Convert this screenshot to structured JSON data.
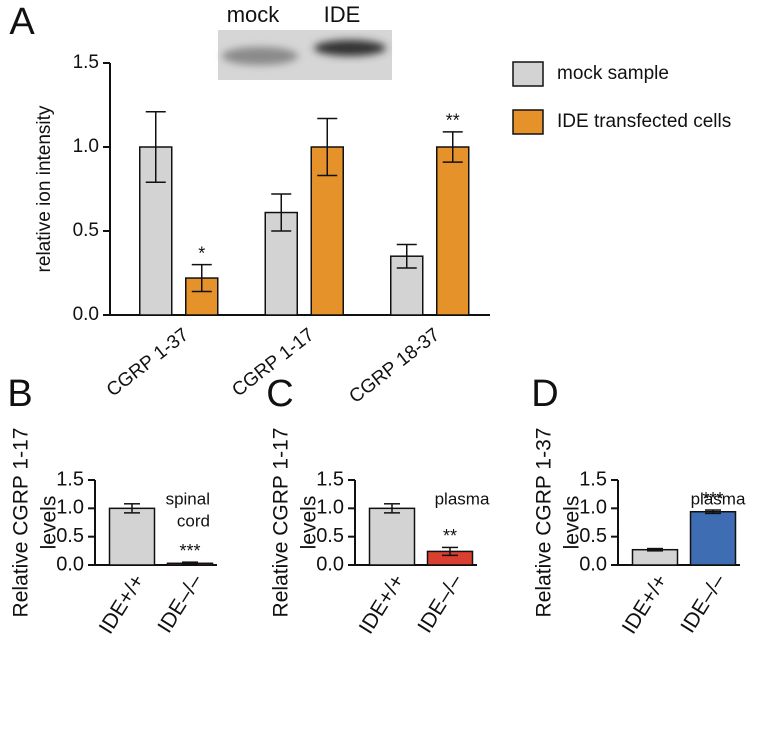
{
  "chart_data": [
    {
      "type": "grouped_bar",
      "panel_label": "A",
      "ylabel": [
        "relative ion intensity"
      ],
      "blot_labels": [
        "mock",
        "IDE"
      ],
      "categories": [
        "CGRP 1-37",
        "CGRP 1-17",
        "CGRP 18-37"
      ],
      "series": [
        {
          "name": "mock sample",
          "color": "#d3d3d3",
          "values": [
            1.0,
            0.61,
            0.35
          ],
          "errors": [
            0.21,
            0.11,
            0.07
          ],
          "significance": [
            null,
            null,
            null
          ]
        },
        {
          "name": "IDE transfected cells",
          "color": "#e5922b",
          "values": [
            0.22,
            1.0,
            1.0
          ],
          "errors": [
            0.08,
            0.17,
            0.09
          ],
          "significance": [
            "*",
            null,
            "**"
          ]
        }
      ],
      "ylim": [
        0,
        1.5
      ],
      "yticks": [
        {
          "value": 0,
          "label": "0.0"
        },
        0.5,
        {
          "value": 1,
          "label": "1.0"
        },
        1.5
      ],
      "legend": "right"
    },
    {
      "type": "bar",
      "panel_label": "B",
      "ylabel": [
        "Relative CGRP 1-17",
        "levels"
      ],
      "annotation": [
        "spinal",
        "cord"
      ],
      "categories": [
        "IDE+/+",
        "IDE–/–"
      ],
      "values": [
        1.0,
        0.03
      ],
      "errors": [
        0.08,
        0.02
      ],
      "colors": [
        "#d3d3d3",
        "#d9402f"
      ],
      "significance": [
        null,
        "***"
      ],
      "ylim": [
        0,
        1.5
      ],
      "yticks": [
        {
          "value": 0,
          "label": "0.0"
        },
        0.5,
        {
          "value": 1,
          "label": "1.0"
        },
        1.5
      ]
    },
    {
      "type": "bar",
      "panel_label": "C",
      "ylabel": [
        "Relative CGRP 1-17",
        "levels"
      ],
      "annotation": [
        "plasma"
      ],
      "categories": [
        "IDE+/+",
        "IDE–/–"
      ],
      "values": [
        1.0,
        0.24
      ],
      "errors": [
        0.08,
        0.07
      ],
      "colors": [
        "#d3d3d3",
        "#d9402f"
      ],
      "significance": [
        null,
        "**"
      ],
      "ylim": [
        0,
        1.5
      ],
      "yticks": [
        {
          "value": 0,
          "label": "0.0"
        },
        0.5,
        {
          "value": 1,
          "label": "1.0"
        },
        1.5
      ]
    },
    {
      "type": "bar",
      "panel_label": "D",
      "ylabel": [
        "Relative CGRP 1-37",
        "levels"
      ],
      "annotation": [
        "plasma"
      ],
      "categories": [
        "IDE+/+",
        "IDE–/–"
      ],
      "values": [
        0.27,
        0.94
      ],
      "errors": [
        0.02,
        0.03
      ],
      "colors": [
        "#d3d3d3",
        "#3f6db3"
      ],
      "significance": [
        null,
        "***"
      ],
      "ylim": [
        0,
        1.5
      ],
      "yticks": [
        {
          "value": 0,
          "label": "0.0"
        },
        0.5,
        {
          "value": 1,
          "label": "1.0"
        },
        1.5
      ]
    }
  ]
}
